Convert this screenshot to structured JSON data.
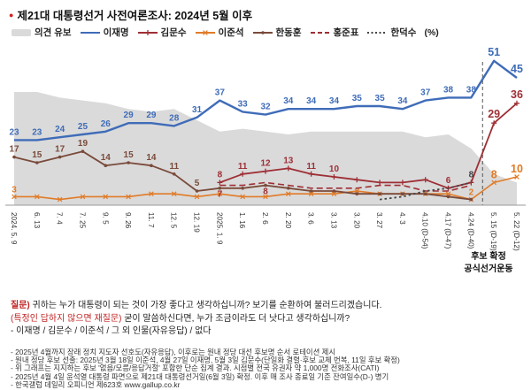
{
  "header": {
    "bullet": "●",
    "title": "제21대 대통령선거 사전여론조사: 2024년 5월 이후"
  },
  "annotations": {
    "line1": "후보 확정",
    "line2": "공식선거운동"
  },
  "question": {
    "prefix": "질문)",
    "text": "귀하는 누가 대통령이 되는 것이 가장 좋다고 생각하십니까? 보기를 순환하여 불러드리겠습니다.",
    "requestion_prefix": "(특정인 답하지 않으면 재질문)",
    "requestion_text": "굳이 말씀하신다면, 누가 조금이라도 더 낫다고 생각하십니까?",
    "options": "- 이재명 / 김문수 / 이준석 / 그 외 인물(자유응답) / 없다"
  },
  "footnotes": [
    "- 2025년 4월까지 장래 정치 지도자 선호도(자유응답), 이후로는 원내 정당 대선 후보명 순서 로테이션 제시",
    "- 원내 정당 후보 선출: 2025년 3월 18일 이준석, 4월 27일 이재명, 5월 3일 김문수(단일화 결렬·후보 교체 번복, 11일 후보 확정)",
    "- 위 그래프는 지지하는 후보 '없음/모름/응답거절' 포함한 단순 집계 결과. 시점별 전국 유권자 약 1,000명 전화조사(CATI)",
    "- 2025년 4월 4일 윤석열 대통령 파면으로 제21대 대통령선거일(6월 3일) 확정. 이후 매 조사 종료일 기준 잔여일수(D-) 병기",
    "- 한국갤럽 데일리 오피니언 제623호 www.gallup.co.kr"
  ],
  "chart_data": {
    "type": "line",
    "unit": "(%)",
    "ylim": [
      0,
      55
    ],
    "grid": false,
    "legend_position": "top",
    "divider_after_index": 20,
    "x_labels": [
      "2024. 5. 9",
      "6. 13",
      "7. 4",
      "7. 25",
      "9. 5",
      "9. 26",
      "11. 7",
      "12. 5",
      "12. 19",
      "2025. 1. 9",
      "1. 16",
      "2. 6",
      "2. 20",
      "3. 6",
      "3. 13",
      "3. 20",
      "3. 27",
      "4. 3",
      "4.10 (D-54)",
      "4.17 (D-47)",
      "4.24 (D-40)",
      "5. 15 (D-19)",
      "5. 22 (D-12)"
    ],
    "series": [
      {
        "id": "opinion_reserved",
        "name": "의견 유보",
        "style": "area",
        "marker": "none",
        "color": "#dadada",
        "values": [
          40,
          40,
          38,
          37,
          36,
          34,
          33,
          34,
          30,
          26,
          27,
          26,
          25,
          26,
          26,
          26,
          26,
          26,
          24,
          25,
          20,
          11,
          8
        ],
        "label_indices": []
      },
      {
        "id": "lee_jaemyung",
        "name": "이재명",
        "style": "solid",
        "marker": "none",
        "color": "#3f6cb8",
        "width": 2.4,
        "values": [
          23,
          23,
          24,
          25,
          26,
          29,
          29,
          28,
          31,
          37,
          33,
          32,
          34,
          34,
          34,
          35,
          35,
          34,
          37,
          38,
          38,
          51,
          45
        ],
        "label_indices": "all",
        "label_dy": -6,
        "emph_indices": [
          21,
          22
        ]
      },
      {
        "id": "kim_moonsoo",
        "name": "김문수",
        "style": "solid",
        "marker": "plus",
        "color": "#9e2f35",
        "width": 1.8,
        "values": [
          null,
          null,
          null,
          null,
          null,
          null,
          null,
          null,
          null,
          8,
          11,
          12,
          13,
          11,
          10,
          9,
          8,
          8,
          9,
          6,
          8,
          29,
          36
        ],
        "label_indices": [
          9,
          10,
          11,
          12,
          13,
          14,
          19,
          21,
          22
        ],
        "label_dy": -6,
        "emph_indices": [
          21,
          22
        ]
      },
      {
        "id": "lee_junseok",
        "name": "이준석",
        "style": "solid",
        "marker": "x",
        "color": "#e07b28",
        "width": 1.6,
        "values": [
          3,
          3,
          2,
          3,
          3,
          3,
          4,
          4,
          3,
          4,
          3,
          3,
          4,
          4,
          4,
          5,
          4,
          4,
          4,
          4,
          2,
          8,
          10
        ],
        "label_indices": [
          0,
          20,
          21,
          22
        ],
        "label_dy": -5,
        "emph_indices": [
          21,
          22
        ]
      },
      {
        "id": "han_donghoon",
        "name": "한동훈",
        "style": "solid",
        "marker": "dot",
        "color": "#7a4a3a",
        "width": 1.8,
        "values": [
          17,
          15,
          17,
          19,
          14,
          15,
          14,
          11,
          5,
          6,
          6,
          7,
          6,
          5,
          5,
          4,
          4,
          4,
          4,
          3,
          2,
          null,
          null
        ],
        "label_indices": [
          0,
          1,
          2,
          3,
          4,
          5,
          6,
          7,
          8
        ],
        "label_dy": -6
      },
      {
        "id": "hong_joonpyo",
        "name": "홍준표",
        "style": "dashed",
        "marker": "none",
        "color": "#9e2f35",
        "width": 1.6,
        "values": [
          null,
          null,
          null,
          null,
          null,
          null,
          null,
          null,
          null,
          7,
          7,
          8,
          7,
          6,
          6,
          6,
          7,
          7,
          5,
          5,
          7,
          null,
          null
        ],
        "label_indices": [
          9,
          11
        ],
        "label_dy": 13
      },
      {
        "id": "han_ducksoo",
        "name": "한덕수",
        "style": "dotted",
        "marker": "none",
        "color": "#444444",
        "width": 1.8,
        "values": [
          null,
          null,
          null,
          null,
          null,
          null,
          null,
          null,
          null,
          null,
          null,
          null,
          null,
          null,
          null,
          null,
          2,
          3,
          5,
          6,
          8,
          null,
          null
        ],
        "label_indices": [
          20
        ],
        "label_dy": -6
      }
    ]
  }
}
